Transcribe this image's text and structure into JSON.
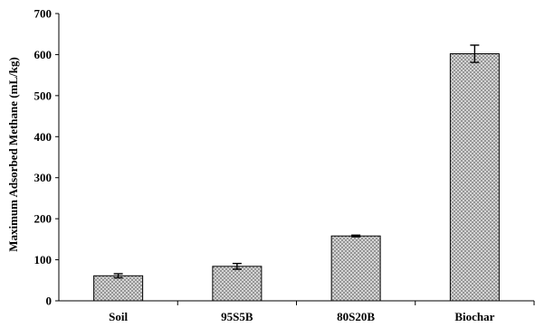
{
  "chart_data": {
    "type": "bar",
    "title": "",
    "xlabel": "",
    "ylabel": "Maximum Adsorbed Methane (mL/kg)",
    "categories": [
      "Soil",
      "95S5B",
      "80S20B",
      "Biochar"
    ],
    "values": [
      61,
      84,
      158,
      602
    ],
    "errors": [
      5,
      7,
      2,
      21
    ],
    "ylim": [
      0,
      700
    ],
    "yticks": [
      0,
      100,
      200,
      300,
      400,
      500,
      600,
      700
    ],
    "grid": false,
    "legend": "none",
    "bar_fill": "crosshatch-gray",
    "colors": {
      "bar_stroke": "#000000",
      "pattern_fg": "#8a8a8a",
      "pattern_bg": "#e6e6e6"
    }
  }
}
